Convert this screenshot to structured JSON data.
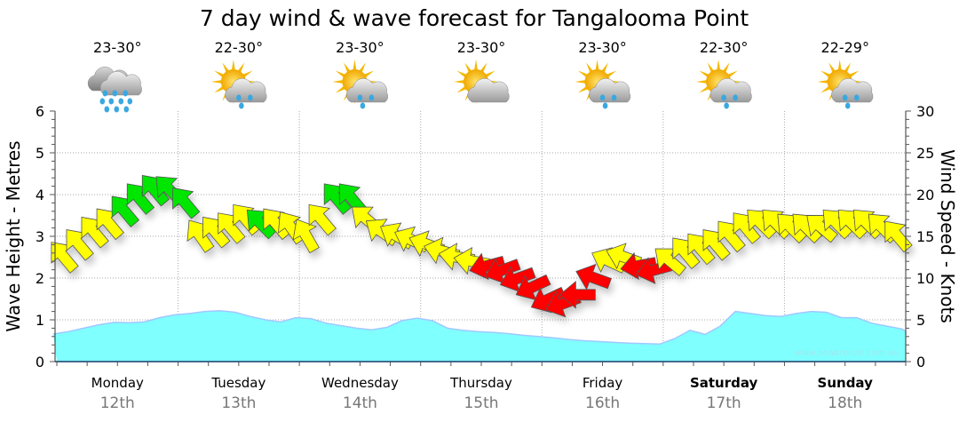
{
  "chart_data": {
    "type": "area+wind-arrows",
    "title": "7 day wind & wave forecast for Tangalooma Point",
    "ylabel_left": "Wave Height - Metres",
    "ylabel_right": "Wind Speed - Knots",
    "ylim_left": [
      0,
      6
    ],
    "ylim_right": [
      0,
      30
    ],
    "yticks_left": [
      "0",
      "1",
      "2",
      "3",
      "4",
      "5",
      "6"
    ],
    "yticks_right": [
      "0",
      "5",
      "10",
      "15",
      "20",
      "25",
      "30"
    ],
    "grid": true,
    "watermark": "www.seabreeze.com.au",
    "days": [
      {
        "day": "Monday",
        "date": "12th",
        "temp": "23-30°",
        "icon": "rain-cloud-icon",
        "bold": false
      },
      {
        "day": "Tuesday",
        "date": "13th",
        "temp": "22-30°",
        "icon": "sun-cloud-rain-icon",
        "bold": false
      },
      {
        "day": "Wednesday",
        "date": "14th",
        "temp": "23-30°",
        "icon": "sun-cloud-rain-icon",
        "bold": false
      },
      {
        "day": "Thursday",
        "date": "15th",
        "temp": "23-30°",
        "icon": "sun-cloud-icon",
        "bold": false
      },
      {
        "day": "Friday",
        "date": "16th",
        "temp": "23-30°",
        "icon": "sun-cloud-rain-icon",
        "bold": false
      },
      {
        "day": "Saturday",
        "date": "17th",
        "temp": "22-30°",
        "icon": "sun-cloud-rain-icon",
        "bold": true
      },
      {
        "day": "Sunday",
        "date": "18th",
        "temp": "22-29°",
        "icon": "sun-cloud-rain-icon",
        "bold": true
      }
    ],
    "wave_height_m": {
      "step_hours": 3,
      "values": [
        0.66,
        0.72,
        0.8,
        0.88,
        0.94,
        0.93,
        0.95,
        1.05,
        1.12,
        1.15,
        1.2,
        1.22,
        1.18,
        1.08,
        1.0,
        0.95,
        1.05,
        1.03,
        0.92,
        0.86,
        0.8,
        0.76,
        0.82,
        0.98,
        1.04,
        0.98,
        0.8,
        0.75,
        0.72,
        0.7,
        0.67,
        0.63,
        0.6,
        0.57,
        0.53,
        0.5,
        0.48,
        0.46,
        0.44,
        0.43,
        0.42,
        0.55,
        0.75,
        0.65,
        0.85,
        1.2,
        1.15,
        1.1,
        1.08,
        1.15,
        1.2,
        1.18,
        1.05,
        1.05,
        0.92,
        0.85,
        0.78,
        0.72,
        0.68,
        0.64
      ]
    },
    "wind": {
      "step_hours": 3,
      "speed_kts": [
        12.5,
        14,
        15.5,
        16.5,
        18,
        19.5,
        20.5,
        20.5,
        19,
        15,
        15.5,
        16,
        17,
        16.5,
        16.5,
        16,
        15,
        17,
        19.5,
        19.5,
        17,
        15.5,
        15,
        14.5,
        14,
        13.2,
        12.5,
        12,
        11.5,
        11,
        10,
        9,
        7.5,
        7,
        8,
        10,
        12,
        12.5,
        11.5,
        11,
        12,
        13,
        13.5,
        14,
        15,
        16,
        16.5,
        16.5,
        16,
        16,
        16,
        16.5,
        16.5,
        16.5,
        16,
        15
      ],
      "from_deg": [
        140,
        140,
        140,
        140,
        140,
        140,
        140,
        135,
        140,
        145,
        140,
        140,
        140,
        135,
        140,
        145,
        150,
        140,
        140,
        140,
        130,
        125,
        120,
        115,
        110,
        105,
        100,
        100,
        75,
        70,
        70,
        65,
        65,
        70,
        90,
        110,
        115,
        110,
        80,
        75,
        130,
        140,
        140,
        140,
        140,
        140,
        135,
        135,
        135,
        135,
        130,
        135,
        135,
        135,
        135,
        140
      ],
      "color": [
        "y",
        "y",
        "y",
        "y",
        "g",
        "g",
        "g",
        "g",
        "g",
        "y",
        "y",
        "y",
        "y",
        "g",
        "y",
        "y",
        "y",
        "y",
        "g",
        "g",
        "y",
        "y",
        "y",
        "y",
        "y",
        "y",
        "y",
        "y",
        "r",
        "r",
        "r",
        "r",
        "r",
        "r",
        "r",
        "r",
        "y",
        "y",
        "r",
        "r",
        "y",
        "y",
        "y",
        "y",
        "y",
        "y",
        "y",
        "y",
        "y",
        "y",
        "y",
        "y",
        "y",
        "y",
        "y",
        "y"
      ]
    },
    "colors": {
      "y": "#ffff00",
      "g": "#00e600",
      "r": "#ff0000",
      "wave": "#80ffff",
      "wave_line": "#a0c8ff"
    }
  }
}
